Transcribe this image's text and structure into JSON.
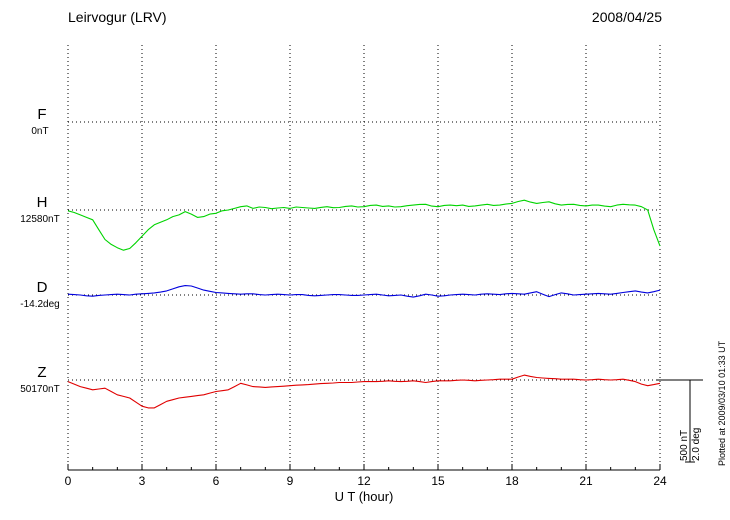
{
  "header": {
    "station": "Leirvogur (LRV)",
    "date": "2008/04/25"
  },
  "chart_data": {
    "type": "line",
    "title": "Leirvogur (LRV)",
    "date": "2008/04/25",
    "xlabel": "U T (hour)",
    "x_range": [
      0,
      24
    ],
    "x_ticks": [
      0,
      3,
      6,
      9,
      12,
      15,
      18,
      21,
      24
    ],
    "x_minor_tick_step": 1,
    "grid": "dotted vertical gridlines every 3 hours; dotted horizontal baseline per component",
    "legend_position": "left-margin component labels",
    "scale_bar": {
      "nt": "500 nT",
      "deg": "2.0 deg",
      "nt_value": 500,
      "deg_value": 2.0
    },
    "plotted_at": "Plotted at 2009/03/10 01:33 UT",
    "series": [
      {
        "name": "F",
        "color": "#f5a400",
        "baseline_label": "0nT",
        "baseline_value": 0,
        "unit": "nT",
        "x_step": 0.25,
        "values": []
      },
      {
        "name": "H",
        "color": "#00d400",
        "baseline_label": "12580nT",
        "baseline_value": 12580,
        "unit": "nT",
        "x_step": 0.25,
        "values": [
          -5,
          -15,
          -30,
          -45,
          -60,
          -120,
          -180,
          -210,
          -230,
          -245,
          -235,
          -200,
          -160,
          -120,
          -90,
          -75,
          -60,
          -40,
          -30,
          -10,
          -25,
          -45,
          -40,
          -25,
          -20,
          -5,
          0,
          10,
          20,
          25,
          10,
          18,
          15,
          8,
          12,
          15,
          10,
          18,
          15,
          12,
          10,
          16,
          20,
          14,
          15,
          22,
          25,
          18,
          20,
          28,
          30,
          22,
          25,
          18,
          20,
          26,
          30,
          34,
          35,
          24,
          20,
          28,
          30,
          26,
          30,
          22,
          25,
          30,
          35,
          28,
          30,
          36,
          40,
          52,
          60,
          48,
          40,
          46,
          50,
          38,
          30,
          34,
          35,
          28,
          25,
          30,
          30,
          24,
          20,
          30,
          35,
          32,
          30,
          20,
          0,
          -120,
          -220
        ]
      },
      {
        "name": "D",
        "color": "#0000dd",
        "baseline_label": "-14.2deg",
        "baseline_value": -14.2,
        "unit": "deg",
        "x_step": 0.25,
        "values": [
          0.02,
          0.01,
          0,
          -0.02,
          -0.03,
          -0.01,
          0,
          0.01,
          0.02,
          0.01,
          0,
          0.02,
          0.03,
          0.04,
          0.05,
          0.07,
          0.1,
          0.15,
          0.2,
          0.23,
          0.22,
          0.17,
          0.12,
          0.09,
          0.06,
          0.05,
          0.04,
          0.03,
          0.02,
          0.03,
          0.03,
          0.01,
          0,
          0.01,
          0.02,
          0.01,
          0,
          0.01,
          0.01,
          -0.01,
          -0.02,
          -0.01,
          0,
          0.01,
          0.01,
          0,
          -0.01,
          -0.01,
          0,
          0.01,
          0.02,
          0,
          -0.02,
          -0.01,
          0,
          -0.03,
          -0.05,
          -0.02,
          0.02,
          0,
          -0.03,
          -0.02,
          0,
          0.01,
          0.02,
          0.01,
          0,
          0.02,
          0.03,
          0.02,
          0.01,
          0.03,
          0.04,
          0.03,
          0.02,
          0.05,
          0.08,
          0.02,
          -0.04,
          0.01,
          0.05,
          0.03,
          0,
          0.01,
          0.02,
          0.03,
          0.04,
          0.03,
          0.02,
          0.04,
          0.06,
          0.08,
          0.1,
          0.07,
          0.05,
          0.08,
          0.12
        ]
      },
      {
        "name": "Z",
        "color": "#e00000",
        "baseline_label": "50170nT",
        "baseline_value": 50170,
        "unit": "nT",
        "x_step": 0.25,
        "values": [
          -10,
          -25,
          -40,
          -50,
          -60,
          -55,
          -50,
          -70,
          -90,
          -100,
          -110,
          -135,
          -160,
          -170,
          -170,
          -150,
          -130,
          -120,
          -110,
          -105,
          -100,
          -95,
          -90,
          -80,
          -70,
          -65,
          -60,
          -40,
          -20,
          -30,
          -40,
          -42,
          -45,
          -42,
          -40,
          -38,
          -35,
          -32,
          -30,
          -28,
          -25,
          -22,
          -20,
          -18,
          -15,
          -15,
          -15,
          -12,
          -10,
          -10,
          -10,
          -8,
          -5,
          -8,
          -10,
          -8,
          -5,
          -10,
          -15,
          -10,
          -5,
          -5,
          -5,
          -2,
          0,
          -2,
          -5,
          -2,
          0,
          2,
          5,
          5,
          5,
          18,
          30,
          22,
          15,
          12,
          10,
          8,
          5,
          5,
          5,
          2,
          0,
          2,
          5,
          2,
          0,
          2,
          5,
          -2,
          -10,
          -25,
          -35,
          -28,
          -20
        ]
      }
    ]
  }
}
